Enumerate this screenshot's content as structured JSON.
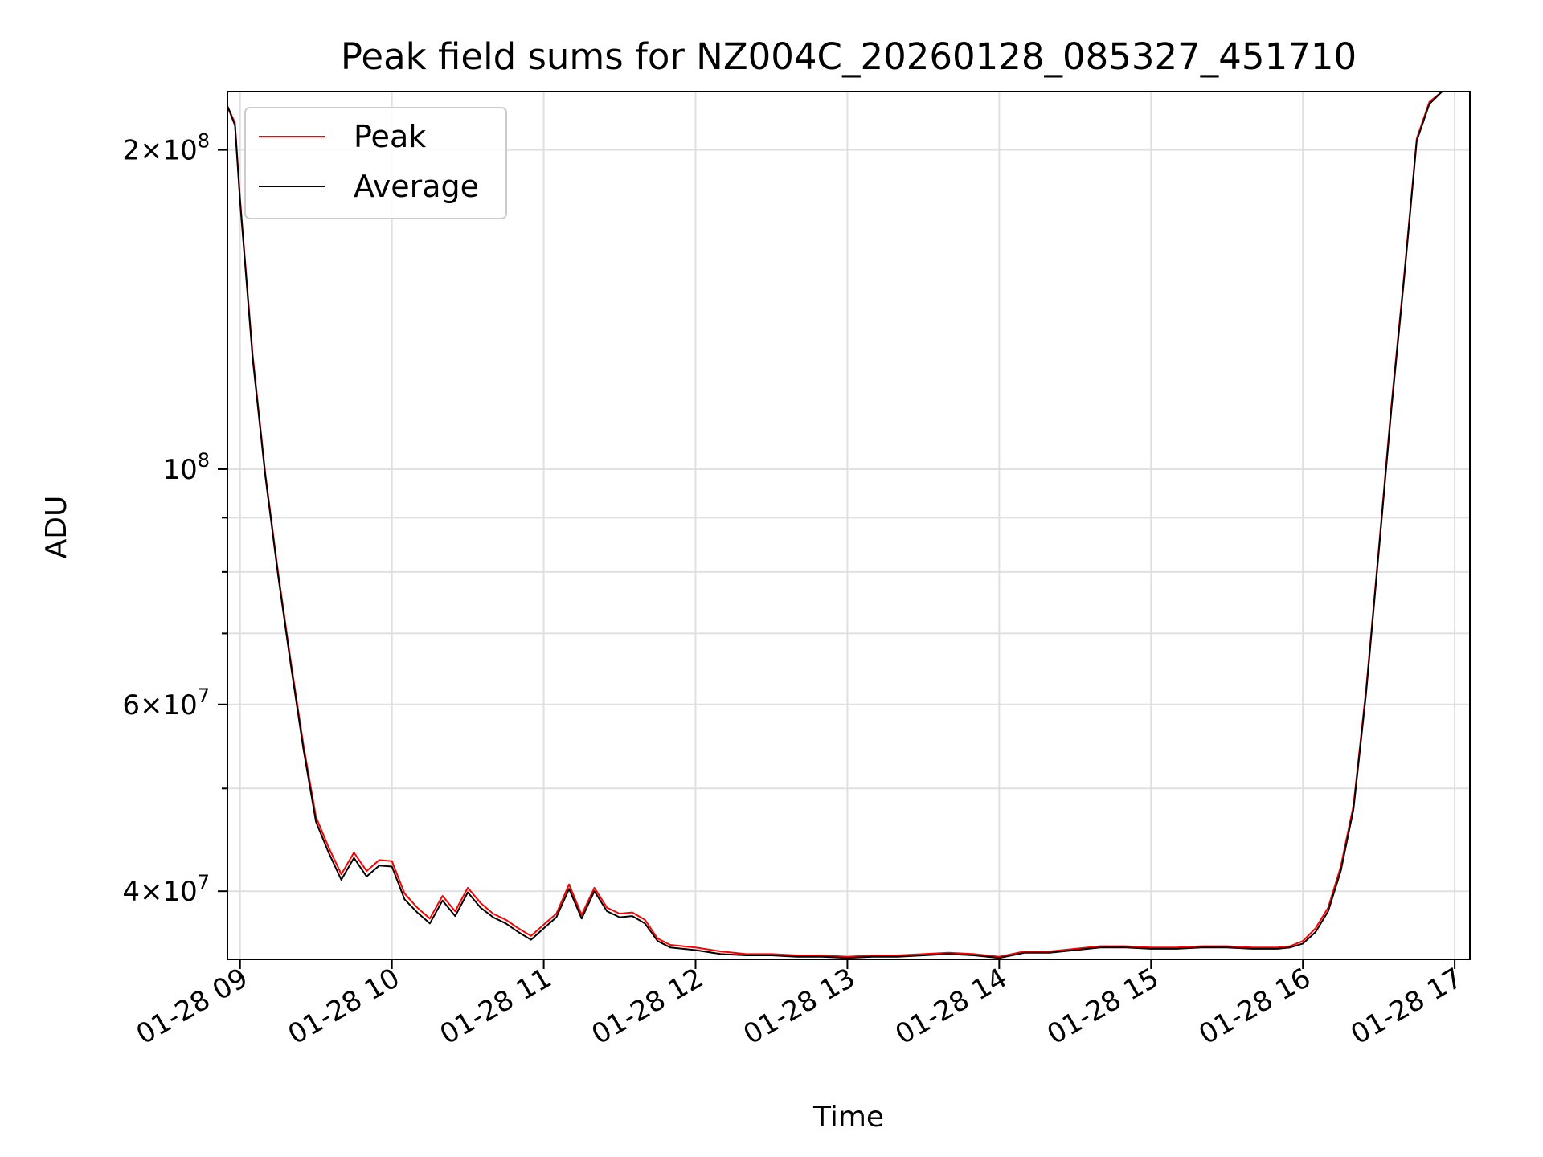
{
  "chart_data": {
    "type": "line",
    "title": "Peak field sums for NZ004C_20260128_085327_451710",
    "xlabel": "Time",
    "ylabel": "ADU",
    "x_type": "datetime",
    "y_scale": "log",
    "xlim": [
      "2026-01-28 08:55",
      "2026-01-28 17:06"
    ],
    "ylim": [
      34500000,
      227000000
    ],
    "grid": true,
    "legend_position": "top-left",
    "x_ticks": [
      {
        "value": "2026-01-28 09:00",
        "label": "01-28 09"
      },
      {
        "value": "2026-01-28 10:00",
        "label": "01-28 10"
      },
      {
        "value": "2026-01-28 11:00",
        "label": "01-28 11"
      },
      {
        "value": "2026-01-28 12:00",
        "label": "01-28 12"
      },
      {
        "value": "2026-01-28 13:00",
        "label": "01-28 13"
      },
      {
        "value": "2026-01-28 14:00",
        "label": "01-28 14"
      },
      {
        "value": "2026-01-28 15:00",
        "label": "01-28 15"
      },
      {
        "value": "2026-01-28 16:00",
        "label": "01-28 16"
      },
      {
        "value": "2026-01-28 17:00",
        "label": "01-28 17"
      }
    ],
    "y_major_ticks": [
      {
        "value": 40000000,
        "base": "4",
        "exp": "7"
      },
      {
        "value": 60000000,
        "base": "6",
        "exp": "7"
      },
      {
        "value": 100000000,
        "base": "",
        "exp": "8"
      },
      {
        "value": 200000000,
        "base": "2",
        "exp": "8"
      }
    ],
    "y_minor_ticks": [
      50000000,
      70000000,
      80000000,
      90000000
    ],
    "series": [
      {
        "name": "Peak",
        "color": "#ff0000",
        "x": [
          "2026-01-28 08:55",
          "2026-01-28 08:58",
          "2026-01-28 09:00",
          "2026-01-28 09:05",
          "2026-01-28 09:10",
          "2026-01-28 09:15",
          "2026-01-28 09:20",
          "2026-01-28 09:25",
          "2026-01-28 09:30",
          "2026-01-28 09:35",
          "2026-01-28 09:40",
          "2026-01-28 09:45",
          "2026-01-28 09:50",
          "2026-01-28 09:55",
          "2026-01-28 10:00",
          "2026-01-28 10:05",
          "2026-01-28 10:10",
          "2026-01-28 10:15",
          "2026-01-28 10:20",
          "2026-01-28 10:25",
          "2026-01-28 10:30",
          "2026-01-28 10:35",
          "2026-01-28 10:40",
          "2026-01-28 10:45",
          "2026-01-28 10:50",
          "2026-01-28 10:55",
          "2026-01-28 11:00",
          "2026-01-28 11:05",
          "2026-01-28 11:10",
          "2026-01-28 11:15",
          "2026-01-28 11:20",
          "2026-01-28 11:25",
          "2026-01-28 11:30",
          "2026-01-28 11:35",
          "2026-01-28 11:40",
          "2026-01-28 11:45",
          "2026-01-28 11:50",
          "2026-01-28 11:55",
          "2026-01-28 12:00",
          "2026-01-28 12:10",
          "2026-01-28 12:20",
          "2026-01-28 12:30",
          "2026-01-28 12:40",
          "2026-01-28 12:50",
          "2026-01-28 13:00",
          "2026-01-28 13:10",
          "2026-01-28 13:20",
          "2026-01-28 13:30",
          "2026-01-28 13:40",
          "2026-01-28 13:50",
          "2026-01-28 14:00",
          "2026-01-28 14:10",
          "2026-01-28 14:20",
          "2026-01-28 14:30",
          "2026-01-28 14:40",
          "2026-01-28 14:50",
          "2026-01-28 15:00",
          "2026-01-28 15:10",
          "2026-01-28 15:20",
          "2026-01-28 15:30",
          "2026-01-28 15:40",
          "2026-01-28 15:50",
          "2026-01-28 15:55",
          "2026-01-28 16:00",
          "2026-01-28 16:05",
          "2026-01-28 16:10",
          "2026-01-28 16:15",
          "2026-01-28 16:20",
          "2026-01-28 16:25",
          "2026-01-28 16:30",
          "2026-01-28 16:35",
          "2026-01-28 16:40",
          "2026-01-28 16:45",
          "2026-01-28 16:50",
          "2026-01-28 16:55",
          "2026-01-28 17:00"
        ],
        "values": [
          220000000,
          212000000,
          180000000,
          128000000,
          99000000,
          80000000,
          66000000,
          55000000,
          47000000,
          44000000,
          41500000,
          43500000,
          41800000,
          42800000,
          42700000,
          39800000,
          38600000,
          37700000,
          39600000,
          38300000,
          40300000,
          39000000,
          38100000,
          37600000,
          36900000,
          36300000,
          37200000,
          38100000,
          40600000,
          38000000,
          40300000,
          38600000,
          38100000,
          38200000,
          37600000,
          36100000,
          35600000,
          35500000,
          35400000,
          35100000,
          34900000,
          34900000,
          34800000,
          34800000,
          34700000,
          34800000,
          34800000,
          34900000,
          35000000,
          34900000,
          34700000,
          35100000,
          35100000,
          35300000,
          35500000,
          35500000,
          35400000,
          35400000,
          35500000,
          35500000,
          35400000,
          35400000,
          35500000,
          35900000,
          36900000,
          38600000,
          42200000,
          48200000,
          62000000,
          84000000,
          115000000,
          152000000,
          205000000,
          222000000,
          227000000,
          227000000
        ]
      },
      {
        "name": "Average",
        "color": "#000000",
        "x": [
          "2026-01-28 08:55",
          "2026-01-28 08:58",
          "2026-01-28 09:00",
          "2026-01-28 09:05",
          "2026-01-28 09:10",
          "2026-01-28 09:15",
          "2026-01-28 09:20",
          "2026-01-28 09:25",
          "2026-01-28 09:30",
          "2026-01-28 09:35",
          "2026-01-28 09:40",
          "2026-01-28 09:45",
          "2026-01-28 09:50",
          "2026-01-28 09:55",
          "2026-01-28 10:00",
          "2026-01-28 10:05",
          "2026-01-28 10:10",
          "2026-01-28 10:15",
          "2026-01-28 10:20",
          "2026-01-28 10:25",
          "2026-01-28 10:30",
          "2026-01-28 10:35",
          "2026-01-28 10:40",
          "2026-01-28 10:45",
          "2026-01-28 10:50",
          "2026-01-28 10:55",
          "2026-01-28 11:00",
          "2026-01-28 11:05",
          "2026-01-28 11:10",
          "2026-01-28 11:15",
          "2026-01-28 11:20",
          "2026-01-28 11:25",
          "2026-01-28 11:30",
          "2026-01-28 11:35",
          "2026-01-28 11:40",
          "2026-01-28 11:45",
          "2026-01-28 11:50",
          "2026-01-28 11:55",
          "2026-01-28 12:00",
          "2026-01-28 12:10",
          "2026-01-28 12:20",
          "2026-01-28 12:30",
          "2026-01-28 12:40",
          "2026-01-28 12:50",
          "2026-01-28 13:00",
          "2026-01-28 13:10",
          "2026-01-28 13:20",
          "2026-01-28 13:30",
          "2026-01-28 13:40",
          "2026-01-28 13:50",
          "2026-01-28 14:00",
          "2026-01-28 14:10",
          "2026-01-28 14:20",
          "2026-01-28 14:30",
          "2026-01-28 14:40",
          "2026-01-28 14:50",
          "2026-01-28 15:00",
          "2026-01-28 15:10",
          "2026-01-28 15:20",
          "2026-01-28 15:30",
          "2026-01-28 15:40",
          "2026-01-28 15:50",
          "2026-01-28 15:55",
          "2026-01-28 16:00",
          "2026-01-28 16:05",
          "2026-01-28 16:10",
          "2026-01-28 16:15",
          "2026-01-28 16:20",
          "2026-01-28 16:25",
          "2026-01-28 16:30",
          "2026-01-28 16:35",
          "2026-01-28 16:40",
          "2026-01-28 16:45",
          "2026-01-28 16:50",
          "2026-01-28 16:55",
          "2026-01-28 17:00"
        ],
        "values": [
          220000000,
          211000000,
          179000000,
          127000000,
          98500000,
          79500000,
          65500000,
          54500000,
          46500000,
          43500000,
          41000000,
          43000000,
          41300000,
          42300000,
          42200000,
          39300000,
          38200000,
          37300000,
          39200000,
          37900000,
          39900000,
          38600000,
          37800000,
          37300000,
          36600000,
          36000000,
          36900000,
          37800000,
          40200000,
          37700000,
          40000000,
          38300000,
          37800000,
          37900000,
          37300000,
          35900000,
          35400000,
          35300000,
          35200000,
          34900000,
          34800000,
          34800000,
          34700000,
          34700000,
          34600000,
          34700000,
          34700000,
          34800000,
          34900000,
          34800000,
          34600000,
          35000000,
          35000000,
          35200000,
          35400000,
          35400000,
          35300000,
          35300000,
          35400000,
          35400000,
          35300000,
          35300000,
          35400000,
          35700000,
          36600000,
          38300000,
          41800000,
          47800000,
          61500000,
          83500000,
          114000000,
          151000000,
          204000000,
          221000000,
          227000000,
          227000000
        ]
      }
    ]
  }
}
